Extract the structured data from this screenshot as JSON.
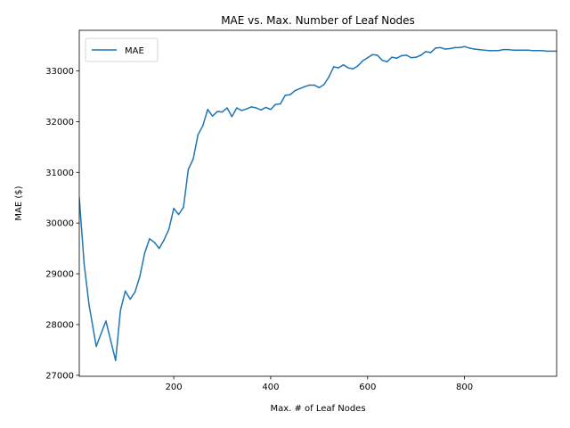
{
  "chart_data": {
    "type": "line",
    "title": "MAE vs. Max. Number of Leaf Nodes",
    "xlabel": "Max. # of Leaf Nodes",
    "ylabel": "MAE ($)",
    "xlim": [
      5,
      990
    ],
    "ylim": [
      26980,
      33800
    ],
    "xticks": [
      200,
      400,
      600,
      800
    ],
    "yticks": [
      27000,
      28000,
      29000,
      30000,
      31000,
      32000,
      33000
    ],
    "grid": false,
    "legend_position": "top-left",
    "colors": {
      "series": "#1f77b4"
    },
    "series": [
      {
        "name": "MAE",
        "x": [
          5,
          15,
          25,
          40,
          60,
          80,
          90,
          100,
          110,
          120,
          130,
          140,
          150,
          160,
          170,
          180,
          190,
          200,
          210,
          220,
          230,
          240,
          250,
          260,
          270,
          280,
          290,
          300,
          310,
          320,
          330,
          340,
          350,
          360,
          370,
          380,
          390,
          400,
          410,
          420,
          430,
          440,
          450,
          460,
          470,
          480,
          490,
          500,
          510,
          520,
          530,
          540,
          550,
          560,
          570,
          580,
          590,
          600,
          610,
          620,
          630,
          640,
          650,
          660,
          670,
          680,
          690,
          700,
          710,
          720,
          730,
          740,
          750,
          760,
          770,
          780,
          790,
          800,
          810,
          820,
          830,
          840,
          850,
          860,
          870,
          880,
          890,
          900,
          910,
          920,
          930,
          940,
          950,
          960,
          970,
          980,
          990
        ],
        "values": [
          30500,
          29200,
          28400,
          27570,
          28070,
          27290,
          28280,
          28660,
          28500,
          28640,
          28950,
          29410,
          29690,
          29620,
          29500,
          29670,
          29880,
          30290,
          30170,
          30310,
          31060,
          31260,
          31740,
          31920,
          32240,
          32110,
          32200,
          32190,
          32270,
          32100,
          32270,
          32220,
          32250,
          32290,
          32270,
          32230,
          32280,
          32240,
          32340,
          32350,
          32520,
          32530,
          32610,
          32650,
          32690,
          32720,
          32720,
          32670,
          32730,
          32880,
          33080,
          33060,
          33120,
          33060,
          33040,
          33100,
          33200,
          33260,
          33320,
          33310,
          33210,
          33180,
          33270,
          33250,
          33300,
          33310,
          33260,
          33270,
          33310,
          33380,
          33360,
          33450,
          33460,
          33430,
          33440,
          33460,
          33460,
          33480,
          33450,
          33430,
          33420,
          33410,
          33400,
          33400,
          33400,
          33420,
          33420,
          33410,
          33410,
          33410,
          33410,
          33400,
          33400,
          33400,
          33390,
          33390,
          33390
        ]
      }
    ]
  }
}
